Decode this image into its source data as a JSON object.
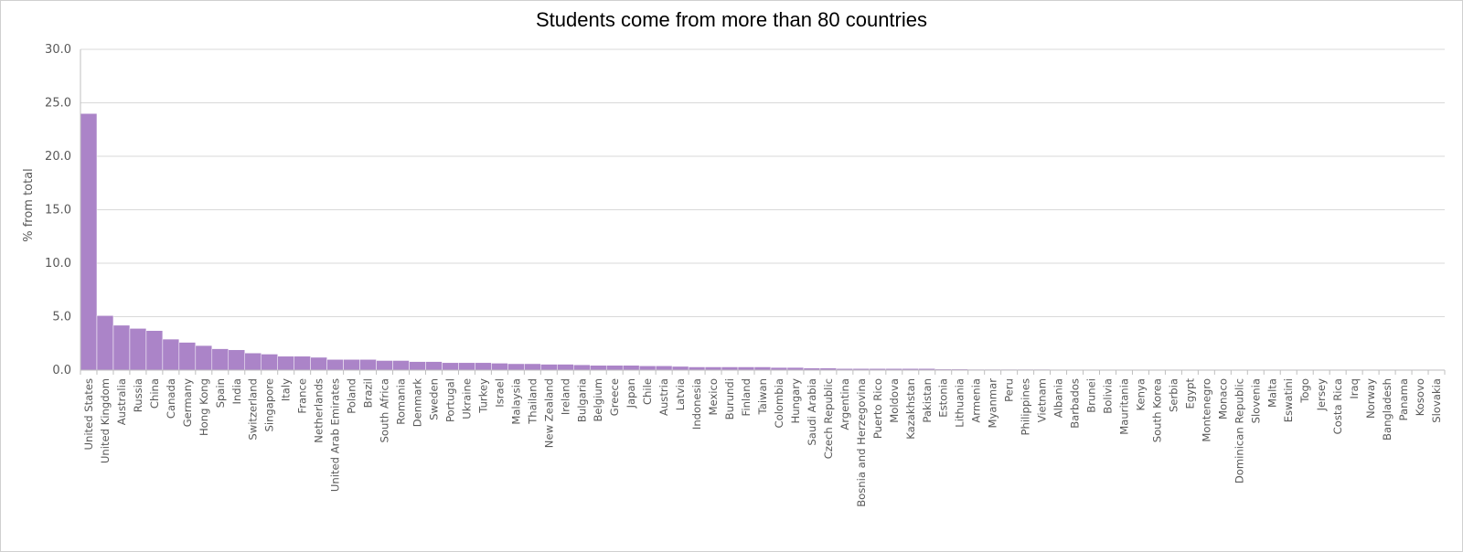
{
  "chart_data": {
    "type": "bar",
    "title": "Students come from more than 80 countries",
    "xlabel": "",
    "ylabel": "% from total",
    "ylim": [
      0,
      30
    ],
    "yticks": [
      "0.0",
      "5.0",
      "10.0",
      "15.0",
      "20.0",
      "25.0",
      "30.0"
    ],
    "grid": true,
    "legend": "none",
    "bar_color": "#ab84c8",
    "categories": [
      "United States",
      "United Kingdom",
      "Australia",
      "Russia",
      "China",
      "Canada",
      "Germany",
      "Hong Kong",
      "Spain",
      "India",
      "Switzerland",
      "Singapore",
      "Italy",
      "France",
      "Netherlands",
      "United Arab Emirates",
      "Poland",
      "Brazil",
      "South Africa",
      "Romania",
      "Denmark",
      "Sweden",
      "Portugal",
      "Ukraine",
      "Turkey",
      "Israel",
      "Malaysia",
      "Thailand",
      "New Zealand",
      "Ireland",
      "Bulgaria",
      "Belgium",
      "Greece",
      "Japan",
      "Chile",
      "Austria",
      "Latvia",
      "Indonesia",
      "Mexico",
      "Burundi",
      "Finland",
      "Taiwan",
      "Colombia",
      "Hungary",
      "Saudi Arabia",
      "Czech Republic",
      "Argentina",
      "Bosnia and Herzegovina",
      "Puerto Rico",
      "Moldova",
      "Kazakhstan",
      "Pakistan",
      "Estonia",
      "Lithuania",
      "Armenia",
      "Myanmar",
      "Peru",
      "Philippines",
      "Vietnam",
      "Albania",
      "Barbados",
      "Brunei",
      "Bolivia",
      "Mauritania",
      "Kenya",
      "South Korea",
      "Serbia",
      "Egypt",
      "Montenegro",
      "Monaco",
      "Dominican Republic",
      "Slovenia",
      "Malta",
      "Eswatini",
      "Togo",
      "Jersey",
      "Costa Rica",
      "Iraq",
      "Norway",
      "Bangladesh",
      "Panama",
      "Kosovo",
      "Slovakia"
    ],
    "values": [
      24.0,
      5.1,
      4.2,
      3.9,
      3.7,
      2.9,
      2.6,
      2.3,
      2.0,
      1.9,
      1.6,
      1.5,
      1.3,
      1.3,
      1.2,
      1.0,
      1.0,
      1.0,
      0.9,
      0.9,
      0.8,
      0.8,
      0.7,
      0.7,
      0.7,
      0.65,
      0.6,
      0.6,
      0.55,
      0.55,
      0.5,
      0.45,
      0.45,
      0.45,
      0.4,
      0.4,
      0.35,
      0.3,
      0.3,
      0.3,
      0.3,
      0.3,
      0.25,
      0.25,
      0.2,
      0.2,
      0.15,
      0.15,
      0.15,
      0.15,
      0.15,
      0.15,
      0.1,
      0.1,
      0.08,
      0.08,
      0.08,
      0.08,
      0.08,
      0.05,
      0.05,
      0.05,
      0.05,
      0.05,
      0.05,
      0.05,
      0.05,
      0.05,
      0.05,
      0.05,
      0.05,
      0.05,
      0.05,
      0.05,
      0.05,
      0.05,
      0.05,
      0.05,
      0.05,
      0.05,
      0.05,
      0.05,
      0.05
    ]
  }
}
